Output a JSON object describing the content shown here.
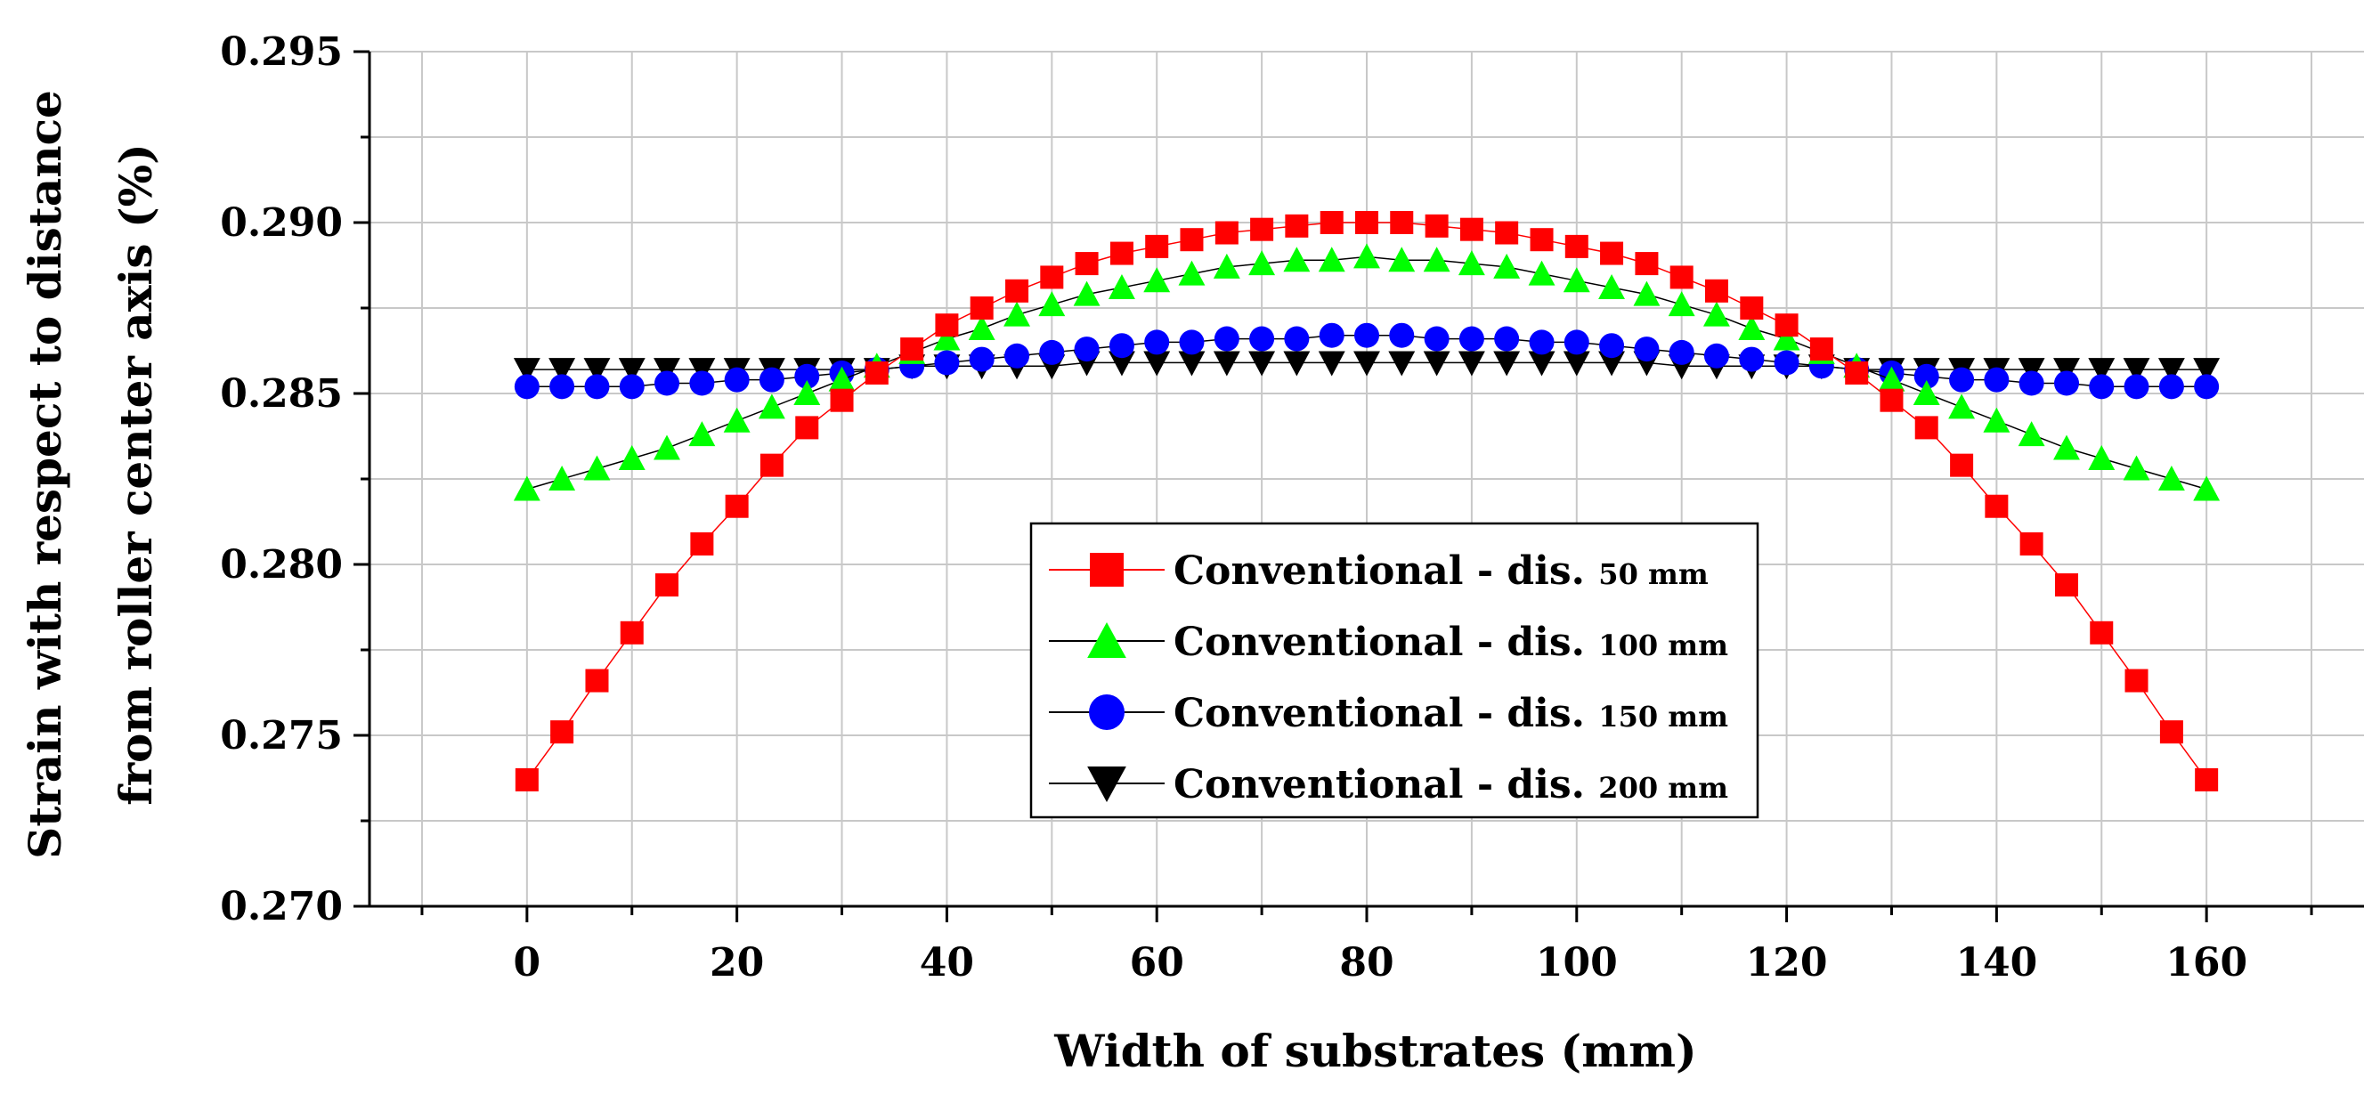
{
  "chart_data": {
    "type": "scatter",
    "xlabel": "Width of substrates (mm)",
    "ylabel_lines": [
      "Strain with respect to distance",
      "from roller center axis (%)"
    ],
    "xlim": [
      -15,
      175
    ],
    "ylim": [
      0.27,
      0.295
    ],
    "x_ticks": [
      0,
      20,
      40,
      60,
      80,
      100,
      120,
      140,
      160
    ],
    "x_tick_labels": [
      "0",
      "20",
      "40",
      "60",
      "80",
      "100",
      "120",
      "140",
      "160"
    ],
    "y_ticks": [
      0.27,
      0.275,
      0.28,
      0.285,
      0.29,
      0.295
    ],
    "y_tick_labels": [
      "0.270",
      "0.275",
      "0.280",
      "0.285",
      "0.290",
      "0.295"
    ],
    "grid": true,
    "legend_position": "center",
    "x": [
      0,
      3.33,
      6.67,
      10,
      13.33,
      16.67,
      20,
      23.33,
      26.67,
      30,
      33.33,
      36.67,
      40,
      43.33,
      46.67,
      50,
      53.33,
      56.67,
      60,
      63.33,
      66.67,
      70,
      73.33,
      76.67,
      80,
      83.33,
      86.67,
      90,
      93.33,
      96.67,
      100,
      103.33,
      106.67,
      110,
      113.33,
      116.67,
      120,
      123.33,
      126.67,
      130,
      133.33,
      136.67,
      140,
      143.33,
      146.67,
      150,
      153.33,
      156.67,
      160
    ],
    "series": [
      {
        "label_main": "Conventional - dis. ",
        "label_unit": "50 mm",
        "marker": "square",
        "color": "#ff0000",
        "line_color": "#ff0000",
        "values": [
          0.2737,
          0.2751,
          0.2766,
          0.278,
          0.2794,
          0.2806,
          0.2817,
          0.2829,
          0.284,
          0.2848,
          0.2856,
          0.2863,
          0.287,
          0.2875,
          0.288,
          0.2884,
          0.2888,
          0.2891,
          0.2893,
          0.2895,
          0.2897,
          0.2898,
          0.2899,
          0.29,
          0.29,
          0.29,
          0.2899,
          0.2898,
          0.2897,
          0.2895,
          0.2893,
          0.2891,
          0.2888,
          0.2884,
          0.288,
          0.2875,
          0.287,
          0.2863,
          0.2856,
          0.2848,
          0.284,
          0.2829,
          0.2817,
          0.2806,
          0.2794,
          0.278,
          0.2766,
          0.2751,
          0.2737
        ]
      },
      {
        "label_main": "Conventional - dis. ",
        "label_unit": "100 mm",
        "marker": "triangle-up",
        "color": "#00ff00",
        "line_color": "#000000",
        "values": [
          0.2822,
          0.2825,
          0.2828,
          0.2831,
          0.2834,
          0.2838,
          0.2842,
          0.2846,
          0.285,
          0.2854,
          0.2858,
          0.2862,
          0.2866,
          0.2869,
          0.2873,
          0.2876,
          0.2879,
          0.2881,
          0.2883,
          0.2885,
          0.2887,
          0.2888,
          0.2889,
          0.2889,
          0.289,
          0.2889,
          0.2889,
          0.2888,
          0.2887,
          0.2885,
          0.2883,
          0.2881,
          0.2879,
          0.2876,
          0.2873,
          0.2869,
          0.2866,
          0.2862,
          0.2858,
          0.2854,
          0.285,
          0.2846,
          0.2842,
          0.2838,
          0.2834,
          0.2831,
          0.2828,
          0.2825,
          0.2822
        ]
      },
      {
        "label_main": "Conventional - dis. ",
        "label_unit": "150 mm",
        "marker": "circle",
        "color": "#0000ff",
        "line_color": "#000000",
        "values": [
          0.2852,
          0.2852,
          0.2852,
          0.2852,
          0.2853,
          0.2853,
          0.2854,
          0.2854,
          0.2855,
          0.2856,
          0.2857,
          0.2858,
          0.2859,
          0.286,
          0.2861,
          0.2862,
          0.2863,
          0.2864,
          0.2865,
          0.2865,
          0.2866,
          0.2866,
          0.2866,
          0.2867,
          0.2867,
          0.2867,
          0.2866,
          0.2866,
          0.2866,
          0.2865,
          0.2865,
          0.2864,
          0.2863,
          0.2862,
          0.2861,
          0.286,
          0.2859,
          0.2858,
          0.2857,
          0.2856,
          0.2855,
          0.2854,
          0.2854,
          0.2853,
          0.2853,
          0.2852,
          0.2852,
          0.2852,
          0.2852
        ]
      },
      {
        "label_main": "Conventional - dis. ",
        "label_unit": "200 mm",
        "marker": "triangle-down",
        "color": "#000000",
        "line_color": "#000000",
        "values": [
          0.2857,
          0.2857,
          0.2857,
          0.2857,
          0.2857,
          0.2857,
          0.2857,
          0.2857,
          0.2857,
          0.2857,
          0.2857,
          0.2858,
          0.2858,
          0.2858,
          0.2858,
          0.2858,
          0.2859,
          0.2859,
          0.2859,
          0.2859,
          0.2859,
          0.2859,
          0.2859,
          0.2859,
          0.2859,
          0.2859,
          0.2859,
          0.2859,
          0.2859,
          0.2859,
          0.2859,
          0.2859,
          0.2859,
          0.2858,
          0.2858,
          0.2858,
          0.2858,
          0.2858,
          0.2857,
          0.2857,
          0.2857,
          0.2857,
          0.2857,
          0.2857,
          0.2857,
          0.2857,
          0.2857,
          0.2857,
          0.2857
        ]
      }
    ]
  }
}
